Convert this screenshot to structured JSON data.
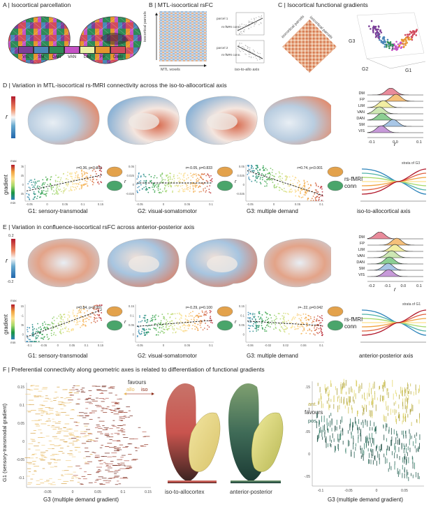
{
  "panels": {
    "A": {
      "title": "A | Isocortical parcellation",
      "networks": [
        {
          "label": "VIS",
          "color": "#7b3f98"
        },
        {
          "label": "SM",
          "color": "#4a86b8"
        },
        {
          "label": "DAN",
          "color": "#2e8b57"
        },
        {
          "label": "VAN",
          "color": "#c553c5"
        },
        {
          "label": "LIM",
          "color": "#e9f2a8"
        },
        {
          "label": "FP",
          "color": "#e6952e"
        },
        {
          "label": "DMN",
          "color": "#d14b5d"
        }
      ]
    },
    "B": {
      "title": "B | MTL-isocortical rsFC",
      "y_axis": "isocortical parcels",
      "x_axis": "MTL voxels",
      "parcel1": "parcel 1",
      "parcel2": "parcel 2",
      "conn": "rs-fMRI conn.",
      "iso_allo": "iso-to-allo axis"
    },
    "C": {
      "title": "C | Isocortical functional gradients",
      "row_label": "isocortical parcels",
      "col_label": "isocortical parcels",
      "axes": {
        "g1": "G1",
        "g2": "G2",
        "g3": "G3"
      }
    },
    "D": {
      "title": "D | Variation in MTL-isocortical rs-fMRI connectivity across the iso-to-allocortical axis",
      "r_label": "r",
      "gradient_label": "gradient",
      "max": "max",
      "min": "min",
      "ridge_labels": [
        "DM",
        "FP",
        "LIM",
        "VAN",
        "DAN",
        "SM",
        "VIS"
      ],
      "ridge_ticks": [
        "-0.1",
        "0.0",
        "0.1"
      ],
      "ridge_xlabel": "r",
      "strata": "strata of G3",
      "conn_label": "rs-fMRI conn",
      "axis_label": "iso-to-allocortical axis"
    },
    "E": {
      "title": "E | Variation in confluence-isocortical rsFC across anterior-posterior axis",
      "colorbar_max": "0.2",
      "colorbar_min": "-0.2",
      "r_label": "r",
      "gradient_label": "gradient",
      "max": "max",
      "min": "min",
      "ridge_labels": [
        "DM",
        "FP",
        "LIM",
        "VAN",
        "DAN",
        "SM",
        "VIS"
      ],
      "ridge_ticks": [
        "-0.2",
        "-0.1",
        "0.0",
        "0.1"
      ],
      "ridge_xlabel": "r",
      "strata": "strata of G1",
      "conn_label": "rs-fMRI conn",
      "axis_label": "anterior-posterior axis"
    },
    "F": {
      "title": "F | Preferential connectivity along geometric axes is related to differentiation of functional gradients",
      "ylabel": "G1 (sensory-transmodal gradient)",
      "xlabel": "G3 (multiple demand gradient)",
      "favours": "favours",
      "allo": "allo",
      "iso": "iso",
      "ant": "ant.",
      "pos": "pos.",
      "cbar1": "iso-to-allocortex",
      "cbar2": "anterior-posterior",
      "left_xticks": [
        "-0.05",
        "0",
        "0.05",
        "0.1",
        "0.15"
      ],
      "left_yticks": [
        "0.15",
        "0.1",
        "0.05",
        "0",
        "-0.05",
        "-0.1"
      ],
      "right_xticks": [
        "-0.1",
        "-0.05",
        "0",
        "0.05"
      ],
      "right_yticks": [
        ".15",
        ".1",
        ".05",
        "0",
        "-.05"
      ]
    }
  },
  "chart_data": [
    {
      "type": "scatter",
      "panel": "D",
      "title": "G1: sensory-transmodal",
      "annotation": "r=0.36, p<0.001",
      "xlim": [
        -0.1,
        0.15
      ],
      "ylim": [
        -0.05,
        0.05
      ],
      "xticks": [
        "-0.05",
        "0",
        "0.05",
        "0.1",
        "0.15"
      ],
      "yticks": [
        "0.05",
        "0.025",
        "0",
        "-0.025"
      ]
    },
    {
      "type": "scatter",
      "panel": "D",
      "title": "G2: visual-somatomotor",
      "annotation": "r=-0.05, p=0.833",
      "xlim": [
        -0.1,
        0.1
      ],
      "ylim": [
        -0.05,
        0.05
      ],
      "xticks": [
        "-0.05",
        "0",
        "0.05",
        "0.1"
      ],
      "yticks": [
        "0.05",
        "0.025",
        "0",
        "-0.025"
      ]
    },
    {
      "type": "scatter",
      "panel": "D",
      "title": "G3: multiple demand",
      "annotation": "r=0.74, p<0.001",
      "xlim": [
        -0.08,
        0.12
      ],
      "ylim": [
        -0.05,
        0.05
      ],
      "xticks": [
        "-0.05",
        "0",
        "0.05",
        "0.1"
      ],
      "yticks": [
        "0.05",
        "0.025",
        "0",
        "-0.025"
      ]
    },
    {
      "type": "scatter",
      "panel": "E",
      "title": "G1: sensory-transmodal",
      "annotation": "r=0.84, p<0.001",
      "xlim": [
        -0.1,
        0.15
      ],
      "ylim": [
        -0.05,
        0.2
      ],
      "xticks": [
        "-0.1",
        "-0.05",
        "0",
        "0.05",
        "0.1",
        "0.15"
      ],
      "yticks": [
        "0.15",
        "0.1",
        "0.05",
        "0"
      ]
    },
    {
      "type": "scatter",
      "panel": "E",
      "title": "G2: visual-somatomotor",
      "annotation": "r=-0.29, p=0.100",
      "xlim": [
        -0.1,
        0.1
      ],
      "ylim": [
        -0.05,
        0.2
      ],
      "xticks": [
        "-0.05",
        "0",
        "0.05",
        "0.1"
      ],
      "yticks": [
        "0.15",
        "0.1",
        "0.05",
        "0"
      ]
    },
    {
      "type": "scatter",
      "panel": "E",
      "title": "G3: multiple demand",
      "annotation": "r=-.22, p=0.042",
      "xlim": [
        -0.08,
        0.12
      ],
      "ylim": [
        -0.05,
        0.2
      ],
      "xticks": [
        "-0.06",
        "-0.02",
        "0.02",
        "0.06",
        "0.1"
      ],
      "yticks": [
        "0.15",
        "0.1",
        "0.05",
        "0"
      ]
    }
  ]
}
